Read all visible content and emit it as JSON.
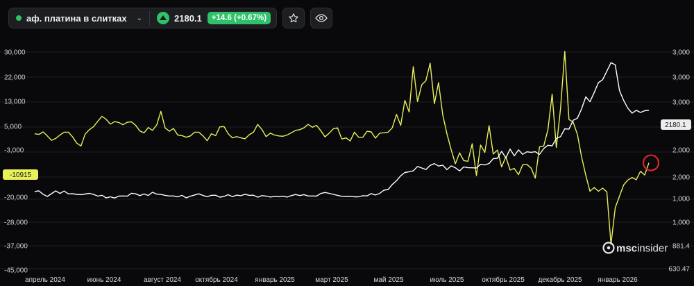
{
  "toolbar": {
    "symbol": "аф. платина в слитках",
    "price": "2180.1",
    "change": "+14.6 (+0.67%)",
    "status_color": "#2fc26a"
  },
  "watermark": {
    "prefix": "msc",
    "suffix": "insider"
  },
  "chart_data": {
    "type": "line",
    "x_labels": [
      "апрель 2024",
      "июнь 2024",
      "август 2024",
      "октябрь 2024",
      "январь 2025",
      "март 2025",
      "май 2025",
      "июль 2025",
      "октябрь 2025",
      "декабрь 2025",
      "январь 2026"
    ],
    "left_axis": {
      "ticks": [
        "30,000",
        "22,000",
        "13,000",
        "5,000",
        "-3,000",
        "-20,000",
        "-28,000",
        "-37,000",
        "-45,000"
      ]
    },
    "right_axis": {
      "ticks": [
        "3,000",
        "3,000",
        "3,000",
        "2,000",
        "2,000",
        "1,000",
        "1,000",
        "881.4",
        "630.47"
      ]
    },
    "current_left_label": "-10915",
    "current_right_label": "2180.1",
    "grid": true,
    "series": [
      {
        "color": "#e9f05a",
        "axis": "left",
        "points": [
          [
            0.0,
            -1.6
          ],
          [
            1.4,
            -1.8
          ],
          [
            2.8,
            -1.0
          ],
          [
            4.2,
            -2.3
          ],
          [
            5.6,
            -3.7
          ],
          [
            7.0,
            -3.1
          ],
          [
            8.4,
            -2.0
          ],
          [
            9.8,
            -1.1
          ],
          [
            11.2,
            -1.1
          ],
          [
            12.6,
            -2.6
          ],
          [
            14.0,
            -4.6
          ],
          [
            15.4,
            -5.5
          ],
          [
            16.8,
            -1.7
          ],
          [
            18.2,
            -0.3
          ],
          [
            19.6,
            0.7
          ],
          [
            21.0,
            2.4
          ],
          [
            22.4,
            4.0
          ],
          [
            23.8,
            3.0
          ],
          [
            25.2,
            1.5
          ],
          [
            26.6,
            2.3
          ],
          [
            28.0,
            2.0
          ],
          [
            29.4,
            1.3
          ],
          [
            30.8,
            2.1
          ],
          [
            32.2,
            2.2
          ],
          [
            33.6,
            1.1
          ],
          [
            35.0,
            -0.7
          ],
          [
            36.4,
            -1.3
          ],
          [
            37.8,
            0.4
          ],
          [
            39.2,
            -0.5
          ],
          [
            40.6,
            1.2
          ],
          [
            42.0,
            5.6
          ],
          [
            43.4,
            0.3
          ],
          [
            44.8,
            -0.8
          ],
          [
            46.2,
            0.1
          ],
          [
            47.6,
            -2.0
          ],
          [
            49.0,
            -2.2
          ],
          [
            50.4,
            -2.7
          ],
          [
            51.8,
            -2.3
          ],
          [
            53.2,
            -1.1
          ],
          [
            54.6,
            -1.1
          ],
          [
            56.0,
            -2.3
          ],
          [
            57.4,
            -3.8
          ],
          [
            58.8,
            -1.6
          ],
          [
            60.2,
            -2.2
          ],
          [
            61.6,
            0.6
          ],
          [
            63.0,
            0.7
          ],
          [
            64.4,
            -1.6
          ],
          [
            65.8,
            -2.9
          ],
          [
            67.2,
            -2.5
          ],
          [
            68.6,
            -2.9
          ],
          [
            70.0,
            -3.2
          ],
          [
            71.4,
            -1.9
          ],
          [
            72.8,
            -1.1
          ],
          [
            74.2,
            1.4
          ],
          [
            75.6,
            -0.2
          ],
          [
            77.0,
            -2.5
          ],
          [
            78.4,
            -1.4
          ],
          [
            79.8,
            -2.0
          ],
          [
            81.2,
            -2.3
          ],
          [
            82.6,
            -2.4
          ],
          [
            84.0,
            -2.0
          ],
          [
            85.4,
            -1.3
          ],
          [
            86.8,
            -0.5
          ],
          [
            88.2,
            -0.3
          ],
          [
            89.6,
            0.3
          ],
          [
            91.0,
            1.4
          ],
          [
            92.4,
            0.5
          ],
          [
            93.8,
            1.1
          ],
          [
            95.2,
            -0.6
          ],
          [
            96.6,
            -2.6
          ],
          [
            98.0,
            -1.4
          ],
          [
            99.4,
            -0.0
          ],
          [
            100.8,
            0.3
          ],
          [
            102.2,
            -3.3
          ],
          [
            103.6,
            -2.9
          ],
          [
            105.0,
            -3.9
          ],
          [
            106.4,
            -1.1
          ],
          [
            107.8,
            -2.7
          ],
          [
            109.2,
            -2.7
          ],
          [
            110.6,
            -0.8
          ],
          [
            112.0,
            -1.0
          ],
          [
            113.4,
            -3.0
          ],
          [
            114.8,
            -1.4
          ],
          [
            116.2,
            -1.3
          ],
          [
            117.6,
            -1.1
          ],
          [
            119.0,
            0.3
          ],
          [
            120.4,
            4.6
          ],
          [
            121.8,
            1.1
          ],
          [
            123.2,
            9.1
          ],
          [
            124.6,
            5.4
          ],
          [
            126.0,
            19.9
          ],
          [
            127.4,
            8.7
          ],
          [
            128.8,
            14.1
          ],
          [
            130.2,
            15.4
          ],
          [
            131.6,
            21.0
          ],
          [
            133.0,
            8.0
          ],
          [
            134.4,
            14.8
          ],
          [
            135.8,
            4.4
          ],
          [
            137.2,
            -1.6
          ],
          [
            138.6,
            -6.7
          ],
          [
            140.0,
            -11.2
          ],
          [
            141.4,
            -7.7
          ],
          [
            142.8,
            -10.2
          ],
          [
            144.2,
            -10.4
          ],
          [
            145.6,
            -4.8
          ],
          [
            147.0,
            -15.0
          ],
          [
            148.4,
            -5.2
          ],
          [
            149.8,
            -7.6
          ],
          [
            151.2,
            1.0
          ],
          [
            152.6,
            -8.1
          ],
          [
            154.0,
            -6.8
          ],
          [
            155.4,
            -12.2
          ],
          [
            156.8,
            -9.0
          ],
          [
            158.2,
            -13.2
          ],
          [
            159.6,
            -12.7
          ],
          [
            161.0,
            -14.7
          ],
          [
            162.4,
            -11.5
          ],
          [
            163.8,
            -11.4
          ],
          [
            165.2,
            -12.6
          ],
          [
            166.6,
            -15.8
          ],
          [
            168.0,
            -5.8
          ],
          [
            169.4,
            -5.5
          ],
          [
            170.8,
            -0.3
          ],
          [
            172.2,
            11.1
          ],
          [
            173.6,
            -6.0
          ],
          [
            175.0,
            6.5
          ],
          [
            176.4,
            24.8
          ],
          [
            177.8,
            3.0
          ],
          [
            179.2,
            2.1
          ],
          [
            180.6,
            -1.8
          ],
          [
            182.0,
            -9.0
          ],
          [
            183.4,
            -14.9
          ],
          [
            184.8,
            -20.0
          ],
          [
            186.2,
            -18.8
          ],
          [
            187.6,
            -20.0
          ],
          [
            189.0,
            -19.0
          ],
          [
            190.4,
            -20.2
          ],
          [
            191.8,
            -37.0
          ],
          [
            193.2,
            -25.3
          ],
          [
            194.6,
            -21.6
          ],
          [
            196.0,
            -18.0
          ],
          [
            197.4,
            -16.4
          ],
          [
            198.8,
            -15.6
          ],
          [
            200.2,
            -16.3
          ],
          [
            201.6,
            -13.6
          ],
          [
            203.0,
            -14.8
          ],
          [
            204.4,
            -10.9
          ]
        ]
      },
      {
        "color": "#ffffff",
        "axis": "right",
        "points": [
          [
            0.0,
            1040
          ],
          [
            1.4,
            1048
          ],
          [
            2.8,
            1000
          ],
          [
            4.2,
            970
          ],
          [
            5.6,
            1009
          ],
          [
            7.0,
            1048
          ],
          [
            8.4,
            1013
          ],
          [
            9.8,
            1046
          ],
          [
            11.2,
            1006
          ],
          [
            12.6,
            1008
          ],
          [
            14.0,
            999
          ],
          [
            15.4,
            995
          ],
          [
            16.8,
            1004
          ],
          [
            18.2,
            1014
          ],
          [
            19.6,
            998
          ],
          [
            21.0,
            975
          ],
          [
            22.4,
            986
          ],
          [
            23.8,
            949
          ],
          [
            25.2,
            965
          ],
          [
            26.6,
            947
          ],
          [
            28.0,
            975
          ],
          [
            29.4,
            977
          ],
          [
            30.8,
            974
          ],
          [
            32.2,
            1015
          ],
          [
            33.6,
            1007
          ],
          [
            35.0,
            981
          ],
          [
            36.4,
            1005
          ],
          [
            37.8,
            983
          ],
          [
            39.2,
            1028
          ],
          [
            40.6,
            1003
          ],
          [
            42.0,
            998
          ],
          [
            43.4,
            985
          ],
          [
            44.8,
            977
          ],
          [
            46.2,
            977
          ],
          [
            47.6,
            964
          ],
          [
            49.0,
            985
          ],
          [
            50.4,
            950
          ],
          [
            51.8,
            973
          ],
          [
            53.2,
            990
          ],
          [
            54.6,
            1007
          ],
          [
            56.0,
            983
          ],
          [
            57.4,
            966
          ],
          [
            58.8,
            986
          ],
          [
            60.2,
            986
          ],
          [
            61.6,
            960
          ],
          [
            63.0,
            970
          ],
          [
            64.4,
            994
          ],
          [
            65.8,
            967
          ],
          [
            67.2,
            988
          ],
          [
            68.6,
            980
          ],
          [
            70.0,
            1001
          ],
          [
            71.4,
            985
          ],
          [
            72.8,
            987
          ],
          [
            74.2,
            959
          ],
          [
            75.6,
            981
          ],
          [
            77.0,
            975
          ],
          [
            78.4,
            962
          ],
          [
            79.8,
            969
          ],
          [
            81.2,
            966
          ],
          [
            82.6,
            974
          ],
          [
            84.0,
            961
          ],
          [
            85.4,
            981
          ],
          [
            86.8,
            997
          ],
          [
            88.2,
            982
          ],
          [
            89.6,
            995
          ],
          [
            91.0,
            977
          ],
          [
            92.4,
            977
          ],
          [
            93.8,
            975
          ],
          [
            95.2,
            1012
          ],
          [
            96.6,
            1025
          ],
          [
            98.0,
            1014
          ],
          [
            99.4,
            999
          ],
          [
            100.8,
            985
          ],
          [
            102.2,
            972
          ],
          [
            103.6,
            970
          ],
          [
            105.0,
            972
          ],
          [
            106.4,
            965
          ],
          [
            107.8,
            965
          ],
          [
            109.2,
            980
          ],
          [
            110.6,
            978
          ],
          [
            112.0,
            1010
          ],
          [
            113.4,
            990
          ],
          [
            114.8,
            1013
          ],
          [
            116.2,
            1058
          ],
          [
            117.6,
            1067
          ],
          [
            119.0,
            1138
          ],
          [
            120.4,
            1190
          ],
          [
            121.8,
            1260
          ],
          [
            123.2,
            1306
          ],
          [
            124.6,
            1317
          ],
          [
            126.0,
            1330
          ],
          [
            127.4,
            1391
          ],
          [
            128.8,
            1370
          ],
          [
            130.2,
            1348
          ],
          [
            131.6,
            1407
          ],
          [
            133.0,
            1431
          ],
          [
            134.4,
            1397
          ],
          [
            135.8,
            1409
          ],
          [
            137.2,
            1346
          ],
          [
            138.6,
            1400
          ],
          [
            140.0,
            1373
          ],
          [
            141.4,
            1329
          ],
          [
            142.8,
            1385
          ],
          [
            144.2,
            1374
          ],
          [
            145.6,
            1373
          ],
          [
            147.0,
            1370
          ],
          [
            148.4,
            1421
          ],
          [
            149.8,
            1413
          ],
          [
            151.2,
            1433
          ],
          [
            152.6,
            1500
          ],
          [
            154.0,
            1506
          ],
          [
            155.4,
            1604
          ],
          [
            156.8,
            1512
          ],
          [
            158.2,
            1636
          ],
          [
            159.6,
            1540
          ],
          [
            161.0,
            1624
          ],
          [
            162.4,
            1562
          ],
          [
            163.8,
            1597
          ],
          [
            165.2,
            1590
          ],
          [
            166.6,
            1598
          ],
          [
            168.0,
            1561
          ],
          [
            169.4,
            1644
          ],
          [
            170.8,
            1689
          ],
          [
            172.2,
            1682
          ],
          [
            173.6,
            1784
          ],
          [
            175.0,
            1811
          ],
          [
            176.4,
            1921
          ],
          [
            177.8,
            1915
          ],
          [
            179.2,
            2040
          ],
          [
            180.6,
            2070
          ],
          [
            182.0,
            2200
          ],
          [
            183.4,
            2370
          ],
          [
            184.8,
            2300
          ],
          [
            186.2,
            2430
          ],
          [
            187.6,
            2570
          ],
          [
            189.0,
            2610
          ],
          [
            190.4,
            2730
          ],
          [
            191.8,
            2850
          ],
          [
            193.2,
            2820
          ],
          [
            194.6,
            2460
          ],
          [
            196.0,
            2320
          ],
          [
            197.4,
            2210
          ],
          [
            198.8,
            2140
          ],
          [
            200.2,
            2180
          ],
          [
            201.6,
            2150
          ],
          [
            203.0,
            2175
          ],
          [
            204.4,
            2180
          ]
        ]
      }
    ],
    "highlight": {
      "x": 204.4,
      "y_left": -10.9
    }
  }
}
